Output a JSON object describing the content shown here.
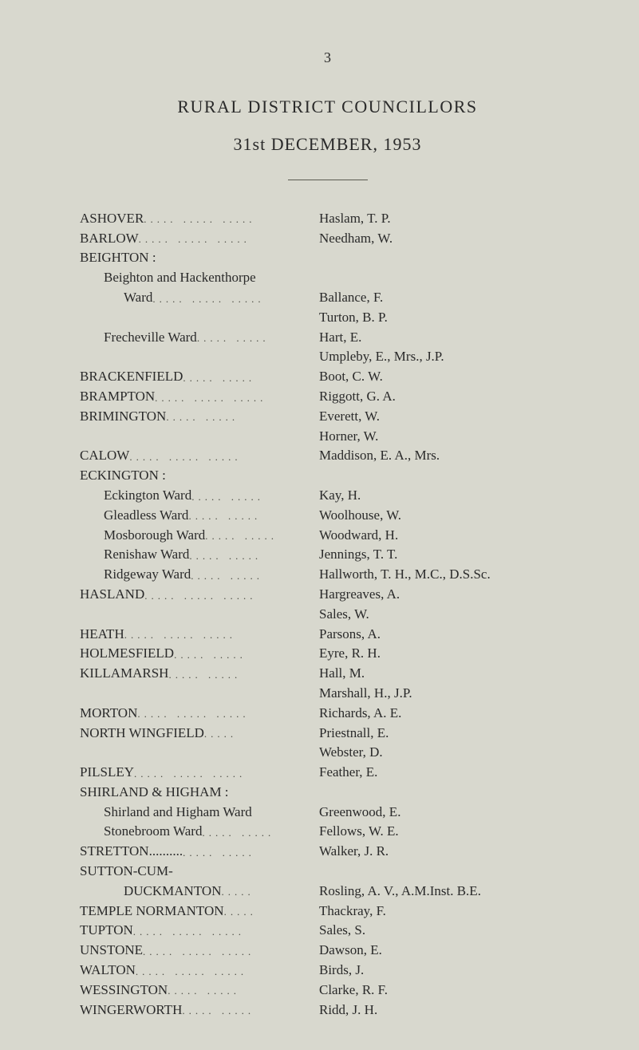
{
  "page_number": "3",
  "title_line_1": "RURAL DISTRICT COUNCILLORS",
  "title_line_2": "31st DECEMBER, 1953",
  "rows": [
    {
      "left": "ASHOVER",
      "dots": "..... ..... .....",
      "right": "Haslam, T. P.",
      "indent": 0
    },
    {
      "left": "BARLOW",
      "dots": "..... ..... .....",
      "right": "Needham, W.",
      "indent": 0
    },
    {
      "left": "BEIGHTON :",
      "dots": "",
      "right": "",
      "indent": 0
    },
    {
      "left": "Beighton and Hackenthorpe",
      "dots": "",
      "right": "",
      "indent": 1
    },
    {
      "left": "Ward",
      "dots": "..... ..... .....",
      "right": "Ballance, F.",
      "indent": 2
    },
    {
      "left": "",
      "dots": "",
      "right": "Turton, B. P.",
      "indent": 0
    },
    {
      "left": "Frecheville Ward",
      "dots": "..... .....",
      "right": "Hart, E.",
      "indent": 1
    },
    {
      "left": "",
      "dots": "",
      "right": "Umpleby, E., Mrs., J.P.",
      "indent": 0
    },
    {
      "left": "BRACKENFIELD",
      "dots": "..... .....",
      "right": "Boot, C. W.",
      "indent": 0
    },
    {
      "left": "BRAMPTON",
      "dots": "..... ..... .....",
      "right": "Riggott, G. A.",
      "indent": 0
    },
    {
      "left": "BRIMINGTON",
      "dots": "..... .....",
      "right": "Everett, W.",
      "indent": 0
    },
    {
      "left": "",
      "dots": "",
      "right": "Horner, W.",
      "indent": 0
    },
    {
      "left": "CALOW",
      "dots": "..... ..... .....",
      "right": "Maddison, E. A., Mrs.",
      "indent": 0
    },
    {
      "left": "ECKINGTON :",
      "dots": "",
      "right": "",
      "indent": 0
    },
    {
      "left": "Eckington Ward",
      "dots": "..... .....",
      "right": "Kay, H.",
      "indent": 1
    },
    {
      "left": "Gleadless Ward",
      "dots": "..... .....",
      "right": "Woolhouse, W.",
      "indent": 1
    },
    {
      "left": "Mosborough Ward",
      "dots": "..... .....",
      "right": "Woodward, H.",
      "indent": 1
    },
    {
      "left": "Renishaw Ward",
      "dots": "..... .....",
      "right": "Jennings, T. T.",
      "indent": 1
    },
    {
      "left": "Ridgeway Ward",
      "dots": "..... .....",
      "right": "Hallworth, T. H., M.C., D.S.Sc.",
      "indent": 1
    },
    {
      "left": "HASLAND",
      "dots": "..... ..... .....",
      "right": "Hargreaves, A.",
      "indent": 0
    },
    {
      "left": "",
      "dots": "",
      "right": "Sales, W.",
      "indent": 0
    },
    {
      "left": "HEATH",
      "dots": "..... ..... .....",
      "right": "Parsons, A.",
      "indent": 0
    },
    {
      "left": "HOLMESFIELD",
      "dots": "..... .....",
      "right": "Eyre, R. H.",
      "indent": 0
    },
    {
      "left": "KILLAMARSH",
      "dots": "..... .....",
      "right": "Hall, M.",
      "indent": 0
    },
    {
      "left": "",
      "dots": "",
      "right": "Marshall, H., J.P.",
      "indent": 0
    },
    {
      "left": "MORTON",
      "dots": "..... ..... .....",
      "right": "Richards, A. E.",
      "indent": 0
    },
    {
      "left": "NORTH WINGFIELD",
      "dots": ".....",
      "right": "Priestnall, E.",
      "indent": 0
    },
    {
      "left": "",
      "dots": "",
      "right": "Webster, D.",
      "indent": 0
    },
    {
      "left": "PILSLEY",
      "dots": "..... ..... .....",
      "right": "Feather, E.",
      "indent": 0
    },
    {
      "left": "SHIRLAND & HIGHAM :",
      "dots": "",
      "right": "",
      "indent": 0
    },
    {
      "left": "Shirland and Higham Ward",
      "dots": "",
      "right": "Greenwood, E.",
      "indent": 1
    },
    {
      "left": "Stonebroom Ward",
      "dots": "..... .....",
      "right": "Fellows, W. E.",
      "indent": 1
    },
    {
      "left": "STRETTON..........",
      "dots": "..... .....",
      "right": "Walker, J. R.",
      "indent": 0
    },
    {
      "left": "SUTTON-CUM-",
      "dots": "",
      "right": "",
      "indent": 0
    },
    {
      "left": "DUCKMANTON",
      "dots": ".....",
      "right": "Rosling, A. V., A.M.Inst. B.E.",
      "indent": 2
    },
    {
      "left": "TEMPLE NORMANTON",
      "dots": ".....",
      "right": "Thackray, F.",
      "indent": 0
    },
    {
      "left": "TUPTON",
      "dots": "..... ..... .....",
      "right": "Sales, S.",
      "indent": 0
    },
    {
      "left": "UNSTONE",
      "dots": "..... ..... .....",
      "right": "Dawson, E.",
      "indent": 0
    },
    {
      "left": "WALTON",
      "dots": "..... ..... .....",
      "right": "Birds, J.",
      "indent": 0
    },
    {
      "left": "WESSINGTON",
      "dots": "..... .....",
      "right": "Clarke, R. F.",
      "indent": 0
    },
    {
      "left": "WINGERWORTH",
      "dots": "..... .....",
      "right": "Ridd, J. H.",
      "indent": 0
    }
  ]
}
